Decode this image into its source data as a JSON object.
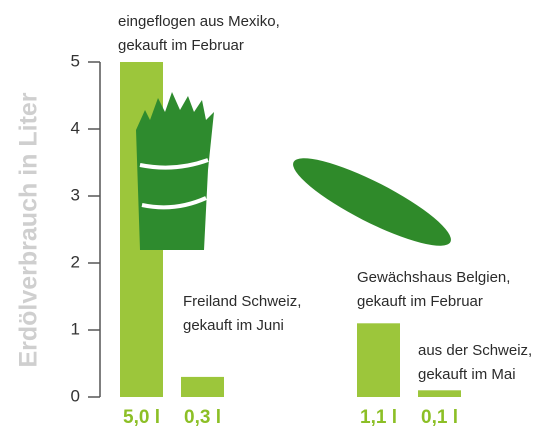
{
  "chart_data": {
    "type": "bar",
    "y_label": "Erdölverbrauch in Liter",
    "categories": [
      null,
      null,
      null,
      null
    ],
    "values": [
      5.0,
      0.3,
      1.1,
      0.1
    ],
    "value_labels": [
      "5,0 l",
      "0,3 l",
      "1,1 l",
      "0,1 l"
    ],
    "annotations": [
      [
        "eingeflogen aus Mexiko,",
        "gekauft im Februar"
      ],
      [
        "Freiland Schweiz,",
        "gekauft im Juni"
      ],
      [
        "Gewächshaus Belgien,",
        "gekauft im Februar"
      ],
      [
        "aus der Schweiz,",
        "gekauft im Mai"
      ]
    ],
    "color": "#9cc63b",
    "ylim": [
      0,
      5
    ],
    "yticks": [
      0,
      1,
      2,
      3,
      4,
      5
    ]
  }
}
